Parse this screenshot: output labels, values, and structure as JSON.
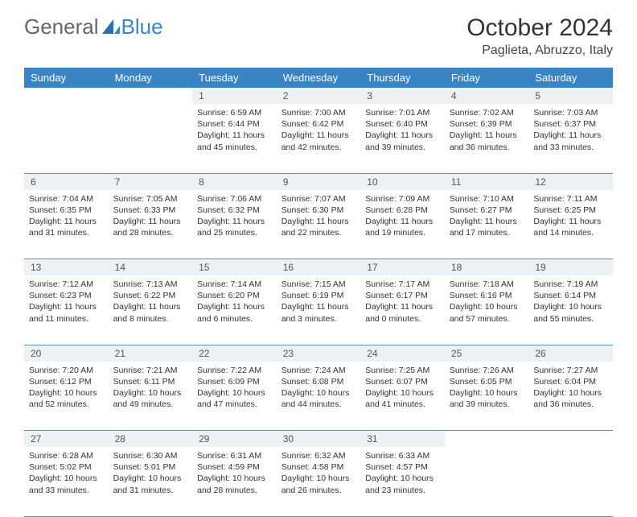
{
  "brand": {
    "part1": "General",
    "part2": "Blue"
  },
  "title": "October 2024",
  "location": "Paglieta, Abruzzo, Italy",
  "colors": {
    "header_bg": "#3a84c4",
    "header_text": "#ffffff",
    "daynum_bg": "#eef1f4",
    "border": "#6a8fab",
    "brand_gray": "#666666",
    "brand_blue": "#3a84c4"
  },
  "dayNames": [
    "Sunday",
    "Monday",
    "Tuesday",
    "Wednesday",
    "Thursday",
    "Friday",
    "Saturday"
  ],
  "weeks": [
    {
      "nums": [
        "",
        "",
        "1",
        "2",
        "3",
        "4",
        "5"
      ],
      "cells": [
        null,
        null,
        {
          "sunrise": "Sunrise: 6:59 AM",
          "sunset": "Sunset: 6:44 PM",
          "daylight1": "Daylight: 11 hours",
          "daylight2": "and 45 minutes."
        },
        {
          "sunrise": "Sunrise: 7:00 AM",
          "sunset": "Sunset: 6:42 PM",
          "daylight1": "Daylight: 11 hours",
          "daylight2": "and 42 minutes."
        },
        {
          "sunrise": "Sunrise: 7:01 AM",
          "sunset": "Sunset: 6:40 PM",
          "daylight1": "Daylight: 11 hours",
          "daylight2": "and 39 minutes."
        },
        {
          "sunrise": "Sunrise: 7:02 AM",
          "sunset": "Sunset: 6:39 PM",
          "daylight1": "Daylight: 11 hours",
          "daylight2": "and 36 minutes."
        },
        {
          "sunrise": "Sunrise: 7:03 AM",
          "sunset": "Sunset: 6:37 PM",
          "daylight1": "Daylight: 11 hours",
          "daylight2": "and 33 minutes."
        }
      ]
    },
    {
      "nums": [
        "6",
        "7",
        "8",
        "9",
        "10",
        "11",
        "12"
      ],
      "cells": [
        {
          "sunrise": "Sunrise: 7:04 AM",
          "sunset": "Sunset: 6:35 PM",
          "daylight1": "Daylight: 11 hours",
          "daylight2": "and 31 minutes."
        },
        {
          "sunrise": "Sunrise: 7:05 AM",
          "sunset": "Sunset: 6:33 PM",
          "daylight1": "Daylight: 11 hours",
          "daylight2": "and 28 minutes."
        },
        {
          "sunrise": "Sunrise: 7:06 AM",
          "sunset": "Sunset: 6:32 PM",
          "daylight1": "Daylight: 11 hours",
          "daylight2": "and 25 minutes."
        },
        {
          "sunrise": "Sunrise: 7:07 AM",
          "sunset": "Sunset: 6:30 PM",
          "daylight1": "Daylight: 11 hours",
          "daylight2": "and 22 minutes."
        },
        {
          "sunrise": "Sunrise: 7:09 AM",
          "sunset": "Sunset: 6:28 PM",
          "daylight1": "Daylight: 11 hours",
          "daylight2": "and 19 minutes."
        },
        {
          "sunrise": "Sunrise: 7:10 AM",
          "sunset": "Sunset: 6:27 PM",
          "daylight1": "Daylight: 11 hours",
          "daylight2": "and 17 minutes."
        },
        {
          "sunrise": "Sunrise: 7:11 AM",
          "sunset": "Sunset: 6:25 PM",
          "daylight1": "Daylight: 11 hours",
          "daylight2": "and 14 minutes."
        }
      ]
    },
    {
      "nums": [
        "13",
        "14",
        "15",
        "16",
        "17",
        "18",
        "19"
      ],
      "cells": [
        {
          "sunrise": "Sunrise: 7:12 AM",
          "sunset": "Sunset: 6:23 PM",
          "daylight1": "Daylight: 11 hours",
          "daylight2": "and 11 minutes."
        },
        {
          "sunrise": "Sunrise: 7:13 AM",
          "sunset": "Sunset: 6:22 PM",
          "daylight1": "Daylight: 11 hours",
          "daylight2": "and 8 minutes."
        },
        {
          "sunrise": "Sunrise: 7:14 AM",
          "sunset": "Sunset: 6:20 PM",
          "daylight1": "Daylight: 11 hours",
          "daylight2": "and 6 minutes."
        },
        {
          "sunrise": "Sunrise: 7:15 AM",
          "sunset": "Sunset: 6:19 PM",
          "daylight1": "Daylight: 11 hours",
          "daylight2": "and 3 minutes."
        },
        {
          "sunrise": "Sunrise: 7:17 AM",
          "sunset": "Sunset: 6:17 PM",
          "daylight1": "Daylight: 11 hours",
          "daylight2": "and 0 minutes."
        },
        {
          "sunrise": "Sunrise: 7:18 AM",
          "sunset": "Sunset: 6:16 PM",
          "daylight1": "Daylight: 10 hours",
          "daylight2": "and 57 minutes."
        },
        {
          "sunrise": "Sunrise: 7:19 AM",
          "sunset": "Sunset: 6:14 PM",
          "daylight1": "Daylight: 10 hours",
          "daylight2": "and 55 minutes."
        }
      ]
    },
    {
      "nums": [
        "20",
        "21",
        "22",
        "23",
        "24",
        "25",
        "26"
      ],
      "cells": [
        {
          "sunrise": "Sunrise: 7:20 AM",
          "sunset": "Sunset: 6:12 PM",
          "daylight1": "Daylight: 10 hours",
          "daylight2": "and 52 minutes."
        },
        {
          "sunrise": "Sunrise: 7:21 AM",
          "sunset": "Sunset: 6:11 PM",
          "daylight1": "Daylight: 10 hours",
          "daylight2": "and 49 minutes."
        },
        {
          "sunrise": "Sunrise: 7:22 AM",
          "sunset": "Sunset: 6:09 PM",
          "daylight1": "Daylight: 10 hours",
          "daylight2": "and 47 minutes."
        },
        {
          "sunrise": "Sunrise: 7:24 AM",
          "sunset": "Sunset: 6:08 PM",
          "daylight1": "Daylight: 10 hours",
          "daylight2": "and 44 minutes."
        },
        {
          "sunrise": "Sunrise: 7:25 AM",
          "sunset": "Sunset: 6:07 PM",
          "daylight1": "Daylight: 10 hours",
          "daylight2": "and 41 minutes."
        },
        {
          "sunrise": "Sunrise: 7:26 AM",
          "sunset": "Sunset: 6:05 PM",
          "daylight1": "Daylight: 10 hours",
          "daylight2": "and 39 minutes."
        },
        {
          "sunrise": "Sunrise: 7:27 AM",
          "sunset": "Sunset: 6:04 PM",
          "daylight1": "Daylight: 10 hours",
          "daylight2": "and 36 minutes."
        }
      ]
    },
    {
      "nums": [
        "27",
        "28",
        "29",
        "30",
        "31",
        "",
        ""
      ],
      "cells": [
        {
          "sunrise": "Sunrise: 6:28 AM",
          "sunset": "Sunset: 5:02 PM",
          "daylight1": "Daylight: 10 hours",
          "daylight2": "and 33 minutes."
        },
        {
          "sunrise": "Sunrise: 6:30 AM",
          "sunset": "Sunset: 5:01 PM",
          "daylight1": "Daylight: 10 hours",
          "daylight2": "and 31 minutes."
        },
        {
          "sunrise": "Sunrise: 6:31 AM",
          "sunset": "Sunset: 4:59 PM",
          "daylight1": "Daylight: 10 hours",
          "daylight2": "and 28 minutes."
        },
        {
          "sunrise": "Sunrise: 6:32 AM",
          "sunset": "Sunset: 4:58 PM",
          "daylight1": "Daylight: 10 hours",
          "daylight2": "and 26 minutes."
        },
        {
          "sunrise": "Sunrise: 6:33 AM",
          "sunset": "Sunset: 4:57 PM",
          "daylight1": "Daylight: 10 hours",
          "daylight2": "and 23 minutes."
        },
        null,
        null
      ]
    }
  ]
}
